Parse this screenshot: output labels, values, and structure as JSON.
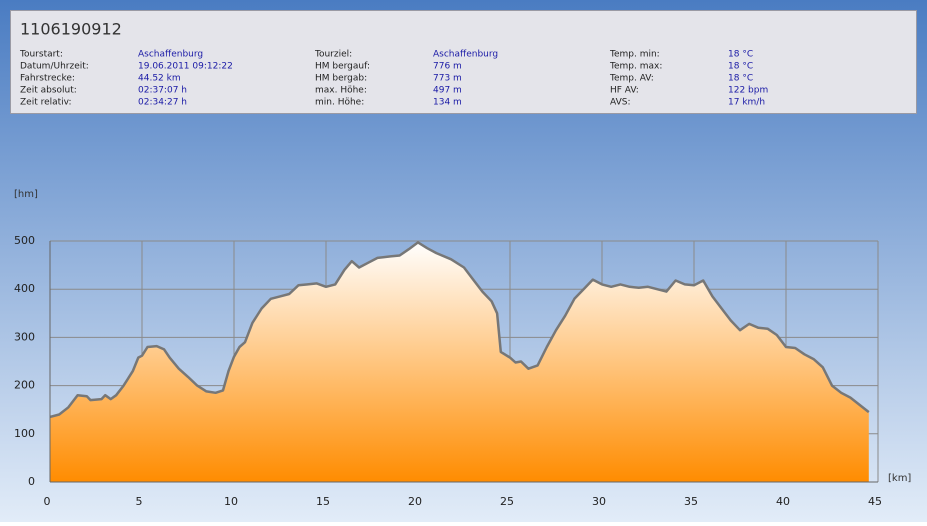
{
  "header": {
    "title": "1106190912",
    "columns": [
      [
        [
          "Tourstart:",
          "Aschaffenburg"
        ],
        [
          "Datum/Uhrzeit:",
          "19.06.2011 09:12:22"
        ],
        [
          "Fahrstrecke:",
          "44.52 km"
        ],
        [
          "Zeit absolut:",
          "02:37:07 h"
        ],
        [
          "Zeit relativ:",
          "02:34:27 h"
        ]
      ],
      [
        [
          "Tourziel:",
          "Aschaffenburg"
        ],
        [
          "HM bergauf:",
          "776 m"
        ],
        [
          "HM bergab:",
          "773 m"
        ],
        [
          "max. Höhe:",
          "497 m"
        ],
        [
          "min. Höhe:",
          "134 m"
        ]
      ],
      [
        [
          "Temp. min:",
          "18 °C"
        ],
        [
          "Temp. max:",
          "18 °C"
        ],
        [
          "Temp. AV:",
          "18 °C"
        ],
        [
          "HF AV:",
          "122 bpm"
        ],
        [
          "AVS:",
          "17 km/h"
        ]
      ]
    ]
  },
  "chart_data": {
    "type": "area",
    "ylabel": "[hm]",
    "xlabel": "[km]",
    "x": [
      0,
      0.5,
      1,
      1.5,
      2,
      2.2,
      2.8,
      3,
      3.3,
      3.6,
      4,
      4.5,
      4.8,
      5,
      5.3,
      5.8,
      6.2,
      6.5,
      7,
      7.5,
      8,
      8.5,
      9,
      9.4,
      9.7,
      10,
      10.3,
      10.6,
      11,
      11.5,
      12,
      12.5,
      13,
      13.5,
      14,
      14.5,
      15,
      15.5,
      16,
      16.4,
      16.8,
      17.3,
      17.8,
      18.5,
      19,
      19.5,
      20,
      20.5,
      21,
      21.8,
      22.5,
      23,
      23.5,
      24,
      24.3,
      24.5,
      25,
      25.3,
      25.6,
      26,
      26.5,
      27,
      27.5,
      28,
      28.5,
      29,
      29.5,
      30,
      30.5,
      31,
      31.5,
      32,
      32.5,
      33,
      33.5,
      34,
      34.5,
      35,
      35.5,
      36,
      36.5,
      37,
      37.5,
      38,
      38.5,
      39,
      39.5,
      40,
      40.5,
      41,
      41.5,
      42,
      42.5,
      43,
      43.5,
      44,
      44.5
    ],
    "values": [
      135,
      140,
      155,
      180,
      178,
      170,
      172,
      180,
      172,
      180,
      200,
      230,
      258,
      262,
      280,
      282,
      275,
      258,
      235,
      218,
      200,
      188,
      185,
      190,
      230,
      260,
      280,
      290,
      330,
      360,
      380,
      385,
      390,
      408,
      410,
      412,
      405,
      410,
      440,
      458,
      445,
      455,
      465,
      468,
      470,
      483,
      497,
      485,
      475,
      462,
      445,
      420,
      395,
      375,
      350,
      270,
      258,
      248,
      250,
      235,
      242,
      280,
      315,
      345,
      380,
      400,
      420,
      410,
      405,
      410,
      405,
      403,
      405,
      400,
      395,
      418,
      410,
      408,
      418,
      385,
      360,
      335,
      315,
      328,
      320,
      318,
      305,
      280,
      278,
      265,
      255,
      238,
      200,
      185,
      175,
      160,
      145
    ],
    "color": "#ff8c00",
    "line_color": "#777777",
    "xlim": [
      0,
      45
    ],
    "xticks": [
      0,
      5,
      10,
      15,
      20,
      25,
      30,
      35,
      40,
      45
    ],
    "ylim": [
      0,
      500
    ],
    "yticks": [
      0,
      100,
      200,
      300,
      400,
      500
    ],
    "grid": true
  }
}
